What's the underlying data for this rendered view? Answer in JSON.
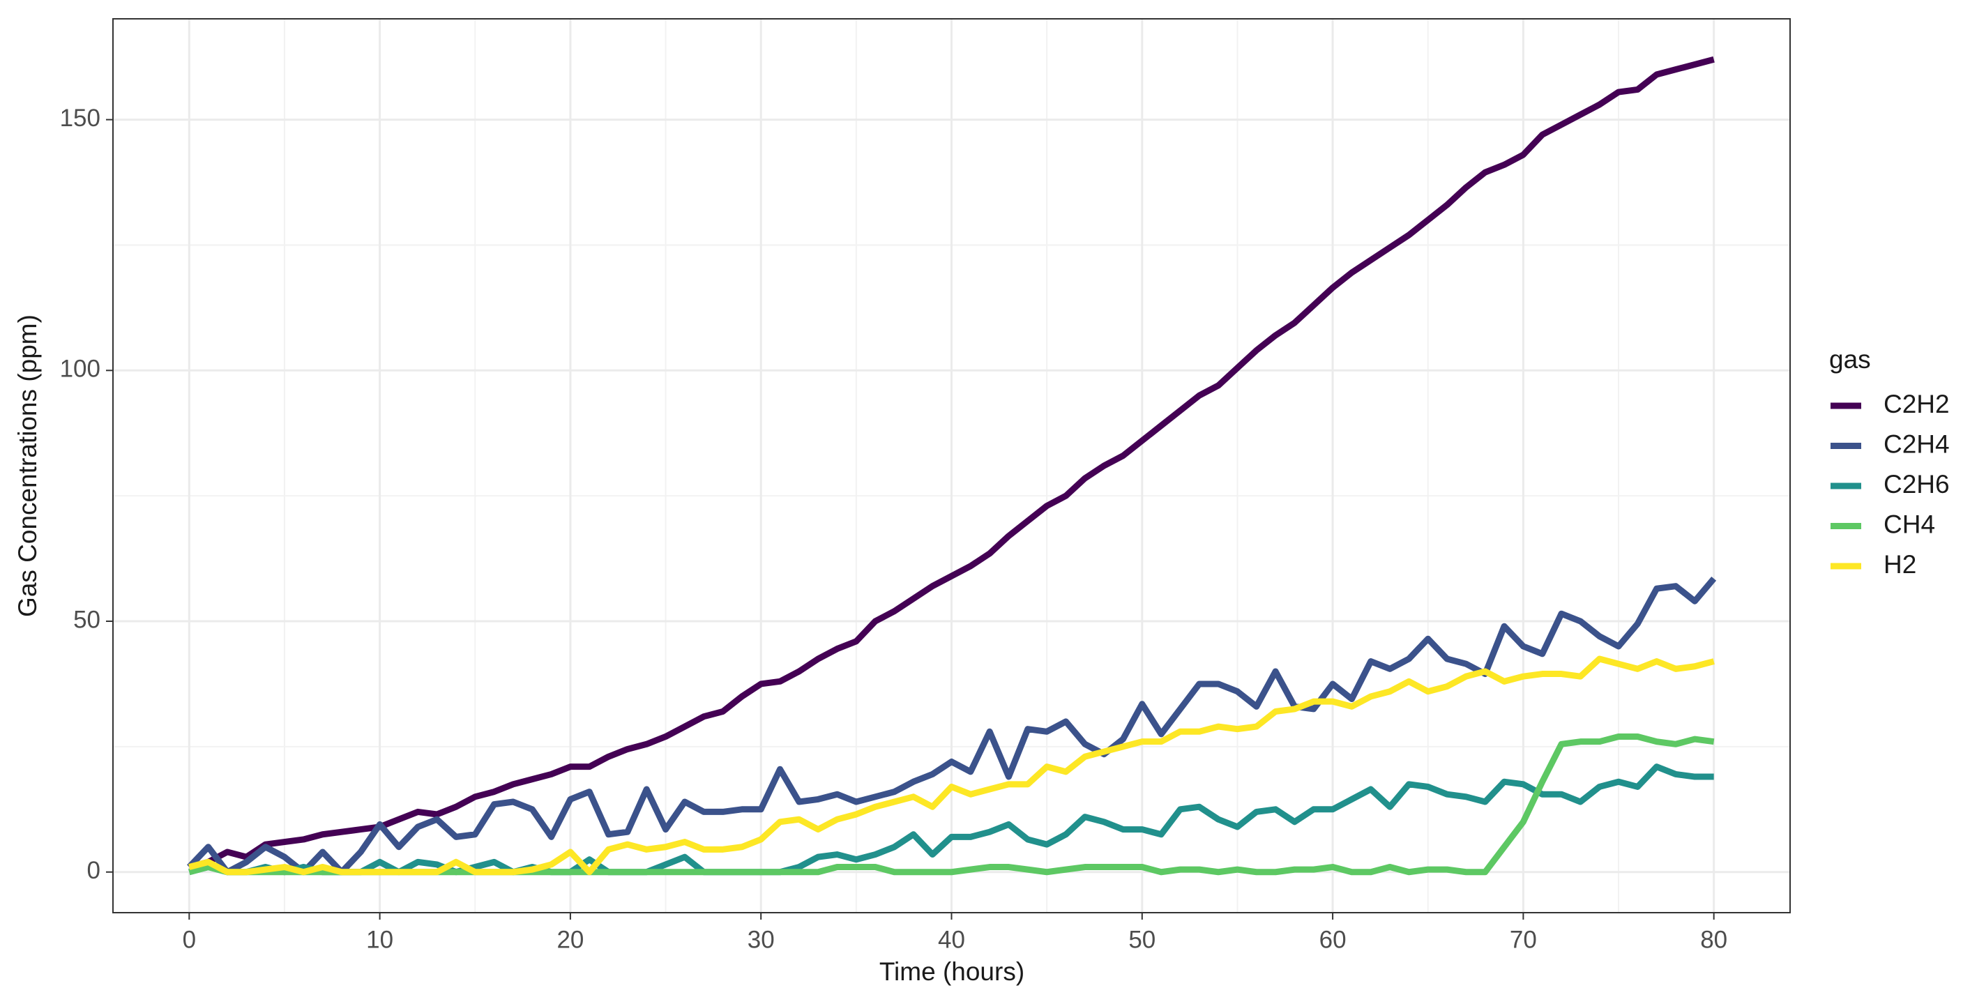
{
  "chart_data": {
    "type": "line",
    "x_label": "Time (hours)",
    "y_label": "Gas Concentrations (ppm)",
    "legend_title": "gas",
    "legend_position": "right",
    "grid": true,
    "xlim": [
      -4,
      84
    ],
    "xticks": [
      0,
      10,
      20,
      30,
      40,
      50,
      60,
      70,
      80
    ],
    "ylim": [
      -8.1,
      170.1
    ],
    "yticks": [
      0,
      50,
      100,
      150
    ],
    "x": [
      0,
      1,
      2,
      3,
      4,
      5,
      6,
      7,
      8,
      9,
      10,
      11,
      12,
      13,
      14,
      15,
      16,
      17,
      18,
      19,
      20,
      21,
      22,
      23,
      24,
      25,
      26,
      27,
      28,
      29,
      30,
      31,
      32,
      33,
      34,
      35,
      36,
      37,
      38,
      39,
      40,
      41,
      42,
      43,
      44,
      45,
      46,
      47,
      48,
      49,
      50,
      51,
      52,
      53,
      54,
      55,
      56,
      57,
      58,
      59,
      60,
      61,
      62,
      63,
      64,
      65,
      66,
      67,
      68,
      69,
      70,
      71,
      72,
      73,
      74,
      75,
      76,
      77,
      78,
      79,
      80
    ],
    "series": [
      {
        "name": "C2H2",
        "color": "#440154",
        "values": [
          1,
          2,
          4,
          3,
          5.5,
          6,
          6.5,
          7.5,
          8,
          8.5,
          9,
          10.5,
          12,
          11.5,
          13,
          15,
          16,
          17.5,
          18.5,
          19.5,
          21,
          21,
          23,
          24.5,
          25.5,
          27,
          29,
          31,
          32,
          35,
          37.5,
          38,
          40,
          42.5,
          44.5,
          46,
          50,
          52,
          54.5,
          57,
          59,
          61,
          63.5,
          67,
          70,
          73,
          75,
          78.5,
          81,
          83,
          86,
          89,
          92,
          95,
          97,
          100.5,
          104,
          107,
          109.5,
          113,
          116.5,
          119.5,
          122,
          124.5,
          127,
          130,
          133,
          136.5,
          139.5,
          141,
          143,
          147,
          149,
          151,
          153,
          155.5,
          156,
          159,
          160,
          161,
          162
        ]
      },
      {
        "name": "C2H4",
        "color": "#3b528b",
        "values": [
          1,
          5,
          0,
          2,
          5,
          3,
          0,
          4,
          0,
          4,
          9.5,
          5,
          9,
          10.5,
          7,
          7.5,
          13.5,
          14,
          12.5,
          7,
          14.5,
          16,
          7.5,
          8,
          16.5,
          8.5,
          14,
          12,
          12,
          12.5,
          12.5,
          20.5,
          14,
          14.5,
          15.5,
          14,
          15,
          16,
          18,
          19.5,
          22,
          20,
          28,
          19,
          28.5,
          28,
          30,
          25.5,
          23.5,
          26.5,
          33.5,
          27.5,
          32.5,
          37.5,
          37.5,
          36,
          33,
          40,
          33,
          32.5,
          37.5,
          34.5,
          42,
          40.5,
          42.5,
          46.5,
          42.5,
          41.5,
          39.5,
          49,
          45,
          43.5,
          51.5,
          50,
          47,
          45,
          49.5,
          56.5,
          57,
          54,
          58.5
        ]
      },
      {
        "name": "C2H6",
        "color": "#21908c",
        "values": [
          0,
          1,
          0,
          0,
          1,
          0,
          1,
          0,
          0,
          0,
          2,
          0,
          2,
          1.5,
          0,
          1,
          2,
          0,
          1,
          0,
          0,
          2.5,
          0,
          0,
          0,
          1.5,
          3,
          0,
          0,
          0,
          0,
          0,
          1,
          3,
          3.5,
          2.5,
          3.5,
          5,
          7.5,
          3.5,
          7,
          7,
          8,
          9.5,
          6.5,
          5.5,
          7.5,
          11,
          10,
          8.5,
          8.5,
          7.5,
          12.5,
          13,
          10.5,
          9,
          12,
          12.5,
          10,
          12.5,
          12.5,
          14.5,
          16.5,
          13,
          17.5,
          17,
          15.5,
          15,
          14,
          18,
          17.5,
          15.5,
          15.5,
          14,
          17,
          18,
          17,
          21,
          19.5,
          19,
          19
        ]
      },
      {
        "name": "CH4",
        "color": "#5dc863",
        "values": [
          0,
          1,
          0,
          0,
          0,
          0,
          0,
          0,
          0,
          0,
          0,
          0,
          0,
          0,
          0,
          0,
          0,
          0,
          0,
          0,
          0,
          0,
          0,
          0,
          0,
          0,
          0,
          0,
          0,
          0,
          0,
          0,
          0,
          0,
          1,
          1,
          1,
          0,
          0,
          0,
          0,
          0.5,
          1,
          1,
          0.5,
          0,
          0.5,
          1,
          1,
          1,
          1,
          0,
          0.5,
          0.5,
          0,
          0.5,
          0,
          0,
          0.5,
          0.5,
          1,
          0,
          0,
          1,
          0,
          0.5,
          0.5,
          0,
          0,
          5,
          10,
          18,
          25.5,
          26,
          26,
          27,
          27,
          26,
          25.5,
          26.5,
          26
        ]
      },
      {
        "name": "H2",
        "color": "#fde725",
        "values": [
          1,
          2,
          0,
          0,
          0.5,
          1,
          0,
          1,
          0,
          0,
          0,
          0,
          0,
          0,
          2,
          0,
          0,
          0,
          0.5,
          1.5,
          4,
          0,
          4.5,
          5.5,
          4.5,
          5,
          6,
          4.5,
          4.5,
          5,
          6.5,
          10,
          10.5,
          8.5,
          10.5,
          11.5,
          13,
          14,
          15,
          13,
          17,
          15.5,
          16.5,
          17.5,
          17.5,
          21,
          20,
          23,
          24,
          25,
          26,
          26,
          28,
          28,
          29,
          28.5,
          29,
          32,
          32.5,
          34,
          34,
          33,
          35,
          36,
          38,
          36,
          37,
          39,
          40,
          38,
          39,
          39.5,
          39.5,
          39,
          42.5,
          41.5,
          40.5,
          42,
          40.5,
          41,
          42
        ]
      }
    ]
  }
}
